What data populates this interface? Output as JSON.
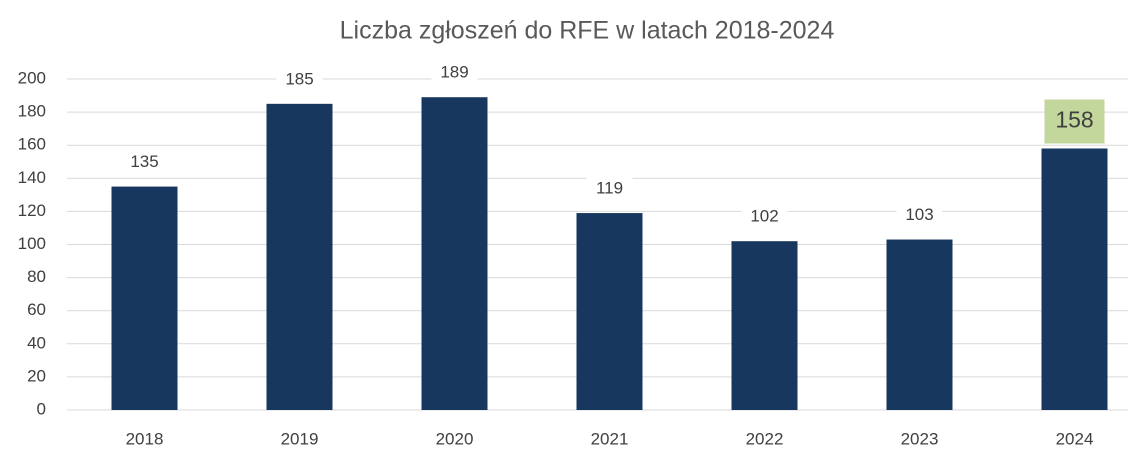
{
  "chart_data": {
    "type": "bar",
    "title": "Liczba zgłoszeń do RFE w latach 2018-2024",
    "categories": [
      "2018",
      "2019",
      "2020",
      "2021",
      "2022",
      "2023",
      "2024"
    ],
    "values": [
      135,
      185,
      189,
      119,
      102,
      103,
      158
    ],
    "color": "#17375e",
    "label_colors": [
      "#ffffff",
      "#ffffff",
      "#ffffff",
      "#ffffff",
      "#ffffff",
      "#ffffff",
      "#c3d69b"
    ],
    "ylim": [
      0,
      200
    ],
    "yticks": [
      0,
      20,
      40,
      60,
      80,
      100,
      120,
      140,
      160,
      180,
      200
    ],
    "grid": true
  }
}
